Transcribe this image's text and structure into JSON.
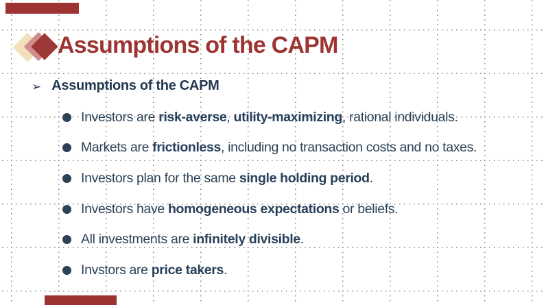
{
  "slide": {
    "title": "Assumptions of the CAPM",
    "heading_marker": "➢",
    "heading": "Assumptions of the CAPM",
    "bullet_marker": "●",
    "bullets": [
      {
        "segments": [
          {
            "text": "Investors are ",
            "bold": false
          },
          {
            "text": "risk-averse",
            "bold": true
          },
          {
            "text": ", ",
            "bold": false
          },
          {
            "text": "utility-maximizing",
            "bold": true
          },
          {
            "text": ", rational individuals.",
            "bold": false
          }
        ]
      },
      {
        "segments": [
          {
            "text": "Markets are ",
            "bold": false
          },
          {
            "text": "frictionless",
            "bold": true
          },
          {
            "text": ", including no transaction costs and no taxes.",
            "bold": false
          }
        ]
      },
      {
        "segments": [
          {
            "text": "Investors plan for the same ",
            "bold": false
          },
          {
            "text": "single holding period",
            "bold": true
          },
          {
            "text": ".",
            "bold": false
          }
        ]
      },
      {
        "segments": [
          {
            "text": "Investors have ",
            "bold": false
          },
          {
            "text": "homogeneous expectations",
            "bold": true
          },
          {
            "text": " or beliefs.",
            "bold": false
          }
        ]
      },
      {
        "segments": [
          {
            "text": "All investments are ",
            "bold": false
          },
          {
            "text": "infinitely divisible",
            "bold": true
          },
          {
            "text": ".",
            "bold": false
          }
        ]
      },
      {
        "segments": [
          {
            "text": "Invstors are ",
            "bold": false
          },
          {
            "text": "price takers",
            "bold": true
          },
          {
            "text": ".",
            "bold": false
          }
        ]
      }
    ],
    "icons": {
      "logo": "diamond-cluster-icon",
      "heading_bullet": "arrow-right-icon",
      "list_bullet": "circle-bullet-icon"
    },
    "colors": {
      "accent_red": "#9d3432",
      "title_red": "#9d3432",
      "heading_navy": "#22384e",
      "body_navy": "#2c4257",
      "diamond_cream": "#f2dfbc",
      "diamond_rose": "#d08e8f",
      "diamond_dark_red": "#9c3937",
      "grid_dot": "#6f6f6f",
      "background": "#ffffff"
    }
  }
}
